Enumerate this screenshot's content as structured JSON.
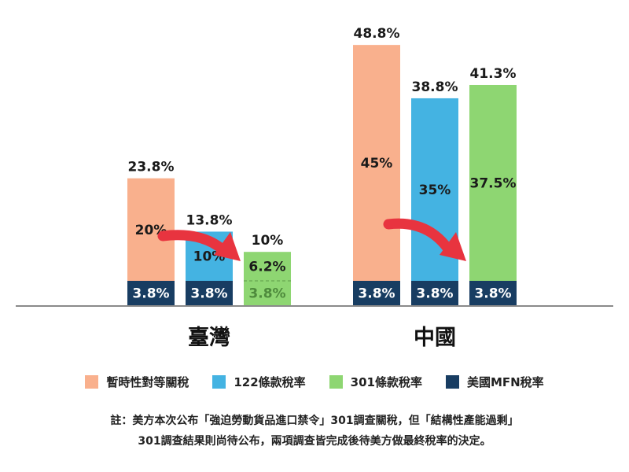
{
  "chart_data": {
    "type": "bar",
    "stacked": true,
    "groups": [
      {
        "name": "臺灣",
        "bars": [
          {
            "series": "暫時性對等關稅",
            "base": 3.8,
            "top": 20,
            "total": 23.8,
            "base_label": "3.8%",
            "top_label": "20%",
            "total_label": "23.8%"
          },
          {
            "series": "122條款稅率",
            "base": 3.8,
            "top": 10,
            "total": 13.8,
            "base_label": "3.8%",
            "top_label": "10%",
            "total_label": "13.8%"
          },
          {
            "series": "301條款稅率",
            "base": 3.8,
            "top": 6.2,
            "total": 10,
            "base_label": "3.8%",
            "top_label": "6.2%",
            "total_label": "10%"
          }
        ]
      },
      {
        "name": "中國",
        "bars": [
          {
            "series": "暫時性對等關稅",
            "base": 3.8,
            "top": 45,
            "total": 48.8,
            "base_label": "3.8%",
            "top_label": "45%",
            "total_label": "48.8%"
          },
          {
            "series": "122條款稅率",
            "base": 3.8,
            "top": 35,
            "total": 38.8,
            "base_label": "3.8%",
            "top_label": "35%",
            "total_label": "38.8%"
          },
          {
            "series": "301條款稅率",
            "base": 3.8,
            "top": 37.5,
            "total": 41.3,
            "base_label": "3.8%",
            "top_label": "37.5%",
            "total_label": "41.3%"
          }
        ]
      }
    ],
    "legend": [
      {
        "name": "暫時性對等關稅",
        "color": "#F9B08D"
      },
      {
        "name": "122條款稅率",
        "color": "#44B3E2"
      },
      {
        "name": "301條款稅率",
        "color": "#8ED672"
      },
      {
        "name": "美國MFN稅率",
        "color": "#183D62"
      }
    ],
    "colors": {
      "base": "#183D62",
      "base_faded": "#8ED672",
      "text_faded": "#4E8A3C",
      "arrow": "#E8343F"
    },
    "legend_placement": "bottom",
    "grid": false
  },
  "note": {
    "line1": "註：美方本次公布「強迫勞動貨品進口禁令」301調查關稅，但「結構性產能過剩」",
    "line2": "301調查結果則尚待公布，兩項調查皆完成後待美方做最終稅率的決定。"
  }
}
